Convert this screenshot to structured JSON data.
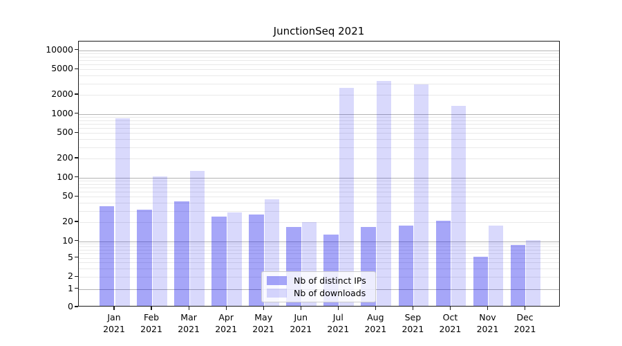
{
  "chart_data": {
    "type": "bar",
    "title": "JunctionSeq 2021",
    "categories": [
      "Jan",
      "Feb",
      "Mar",
      "Apr",
      "May",
      "Jun",
      "Jul",
      "Aug",
      "Sep",
      "Oct",
      "Nov",
      "Dec"
    ],
    "x_tick_second_line": "2021",
    "series": [
      {
        "name": "Nb of distinct IPs",
        "color": "rgba(0,0,235,0.35)",
        "values": [
          34,
          30,
          40,
          23,
          25,
          16,
          12,
          16,
          17,
          20,
          5,
          8
        ]
      },
      {
        "name": "Nb of downloads",
        "color": "rgba(0,0,235,0.15)",
        "values": [
          820,
          100,
          122,
          27,
          43,
          19,
          2450,
          3150,
          2800,
          1260,
          17,
          10
        ]
      }
    ],
    "y_ticks": [
      0,
      1,
      2,
      5,
      10,
      20,
      50,
      100,
      200,
      500,
      1000,
      2000,
      5000,
      10000
    ],
    "ylim": [
      0,
      10000
    ],
    "y_scale": "log-like with 0 baseline",
    "grid": "horizontal, major at decades, minor at 2-9 multiples",
    "legend_position": "lower center",
    "colors": {
      "major_grid": "#b3b3b3",
      "minor_grid": "#e9e9e9",
      "axis": "#1a1a1a",
      "text": "#000000",
      "background": "#ffffff"
    }
  }
}
